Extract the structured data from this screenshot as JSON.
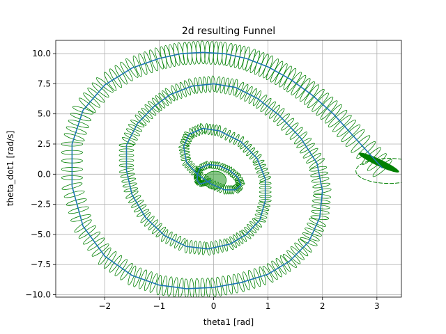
{
  "chart_data": {
    "type": "line",
    "title": "2d resulting Funnel",
    "xlabel": "theta1 [rad]",
    "ylabel": "theta_dot1 [rad/s]",
    "xlim": [
      -2.9,
      3.45
    ],
    "ylim": [
      -10.2,
      11.1
    ],
    "xticks": [
      -2,
      -1,
      0,
      1,
      2,
      3
    ],
    "yticks": [
      -10.0,
      -7.5,
      -5.0,
      -2.5,
      0.0,
      2.5,
      5.0,
      7.5,
      10.0
    ],
    "xtick_labels": [
      "−2",
      "−1",
      "0",
      "1",
      "2",
      "3"
    ],
    "ytick_labels": [
      "−10.0",
      "−7.5",
      "−5.0",
      "−2.5",
      "0.0",
      "2.5",
      "5.0",
      "7.5",
      "10.0"
    ],
    "grid": true,
    "series": [
      {
        "role": "nominal trajectory",
        "color": "#1f77b4",
        "x": [
          3.1,
          2.6,
          2.2,
          1.8,
          1.4,
          1.0,
          0.6,
          0.2,
          -0.2,
          -0.6,
          -1.0,
          -1.5,
          -2.0,
          -2.4,
          -2.6,
          -2.6,
          -2.4,
          -2.0,
          -1.5,
          -1.0,
          -0.5,
          0.0,
          0.5,
          1.0,
          1.4,
          1.75,
          1.95,
          2.0,
          1.9,
          1.6,
          1.2,
          0.8,
          0.4,
          0.0,
          -0.4,
          -0.8,
          -1.1,
          -1.4,
          -1.6,
          -1.6,
          -1.5,
          -1.25,
          -0.9,
          -0.5,
          -0.1,
          0.3,
          0.6,
          0.85,
          0.95,
          0.95,
          0.8,
          0.5,
          0.1,
          -0.2,
          -0.45,
          -0.55,
          -0.5,
          -0.3,
          -0.05,
          0.2,
          0.4,
          0.5,
          0.45,
          0.3,
          0.1,
          -0.1,
          -0.25,
          -0.3,
          -0.3,
          -0.25,
          -0.15,
          -0.05
        ],
        "y": [
          0.5,
          3.0,
          5.0,
          6.6,
          7.9,
          8.9,
          9.6,
          10.0,
          10.1,
          10.0,
          9.6,
          8.8,
          7.4,
          5.3,
          2.5,
          -1.0,
          -4.3,
          -6.8,
          -8.4,
          -9.2,
          -9.5,
          -9.4,
          -9.0,
          -8.3,
          -7.2,
          -5.6,
          -3.6,
          -1.4,
          0.9,
          3.0,
          4.9,
          6.3,
          7.2,
          7.5,
          7.3,
          6.6,
          5.6,
          4.2,
          2.4,
          0.3,
          -1.7,
          -3.6,
          -5.1,
          -6.0,
          -6.2,
          -5.8,
          -5.0,
          -3.8,
          -2.2,
          -0.4,
          1.3,
          2.7,
          3.6,
          3.8,
          3.3,
          2.3,
          1.0,
          0.0,
          -0.8,
          -1.3,
          -1.3,
          -0.9,
          -0.3,
          0.3,
          0.7,
          0.8,
          0.5,
          0.0,
          -0.5,
          -0.8,
          -0.7,
          -0.5
        ]
      }
    ]
  }
}
